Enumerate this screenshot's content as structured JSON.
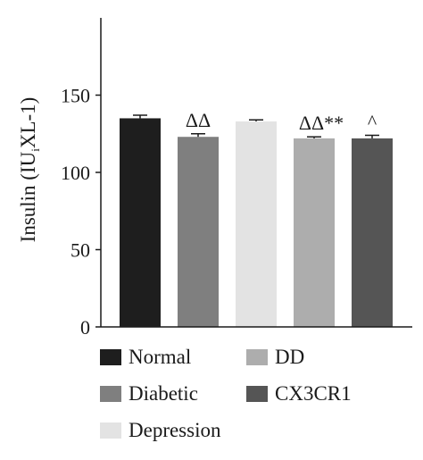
{
  "chart_data": {
    "type": "bar",
    "ylabel_main": "Insulin (IU",
    "ylabel_sub": "i",
    "ylabel_rest": "XL-1)",
    "ylim": [
      0,
      200
    ],
    "yticks": [
      0,
      50,
      100,
      150
    ],
    "grid": false,
    "legend_placement": "bottom",
    "categories": [
      "Normal",
      "Diabetic",
      "Depression",
      "DD",
      "CX3CR1"
    ],
    "values": [
      135,
      123,
      133,
      122,
      122
    ],
    "errors": [
      2,
      2,
      1,
      1,
      2
    ],
    "colors": [
      "#1e1e1e",
      "#7f7f7f",
      "#e3e3e3",
      "#adadad",
      "#555555"
    ],
    "annotations": [
      "",
      "ΔΔ",
      "",
      "ΔΔ**",
      "^"
    ]
  },
  "legend": {
    "items": [
      {
        "label": "Normal",
        "color": "#1e1e1e"
      },
      {
        "label": "DD",
        "color": "#adadad"
      },
      {
        "label": "Diabetic",
        "color": "#7f7f7f"
      },
      {
        "label": "CX3CR1",
        "color": "#555555"
      },
      {
        "label": "Depression",
        "color": "#e3e3e3"
      }
    ]
  }
}
